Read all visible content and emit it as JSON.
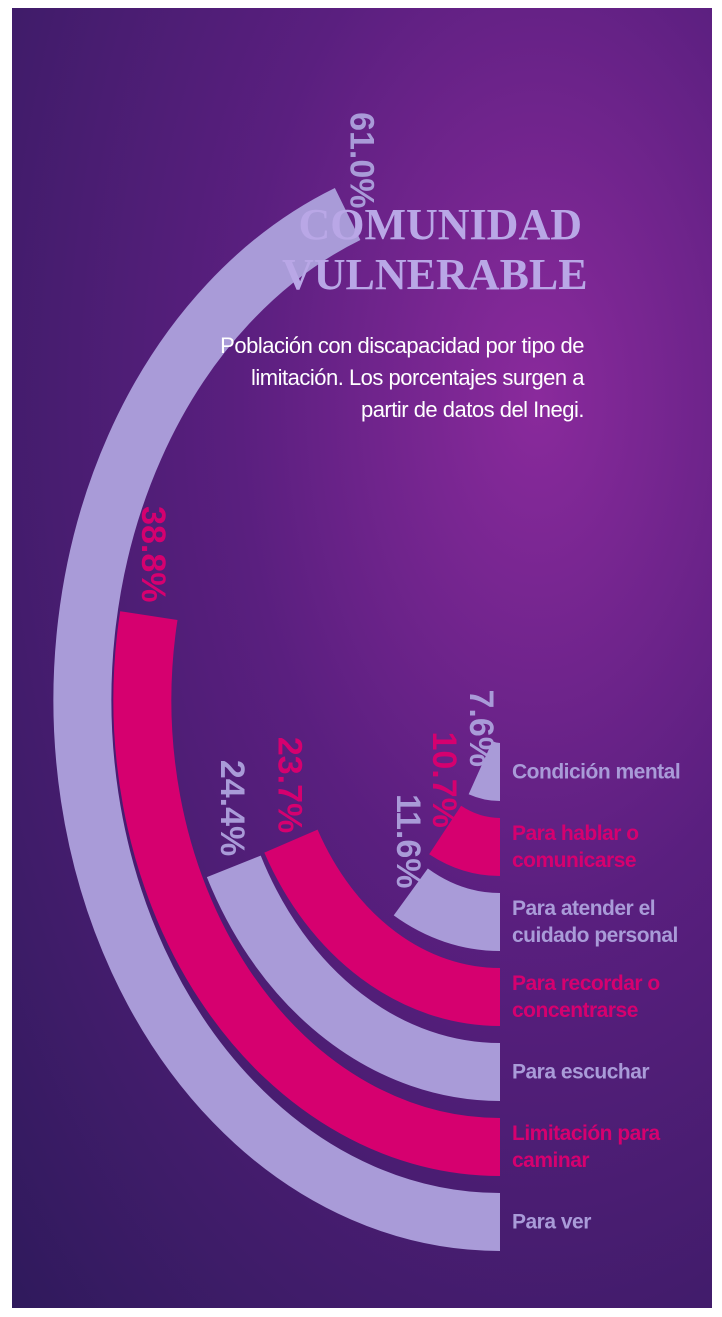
{
  "chart_data": {
    "type": "radial_bar",
    "title": "COMUNIDAD VULNERABLE",
    "subtitle": "Población con discapacidad por tipo de limitación. Los porcentajes surgen a partir de datos del Inegi.",
    "categories": [
      "Para ver",
      "Limitación para caminar",
      "Para escuchar",
      "Para recordar o concentrarse",
      "Para atender el cuidado personal",
      "Para hablar o comunicarse",
      "Condición mental"
    ],
    "values": [
      61.0,
      38.8,
      24.4,
      23.7,
      11.6,
      10.7,
      7.6
    ],
    "value_labels": [
      "61.0%",
      "38.8%",
      "24.4%",
      "23.7%",
      "11.6%",
      "10.7%",
      "7.6%"
    ],
    "colors": [
      "#a99bd8",
      "#d6006f",
      "#a99bd8",
      "#d6006f",
      "#a99bd8",
      "#d6006f",
      "#a99bd8"
    ]
  }
}
